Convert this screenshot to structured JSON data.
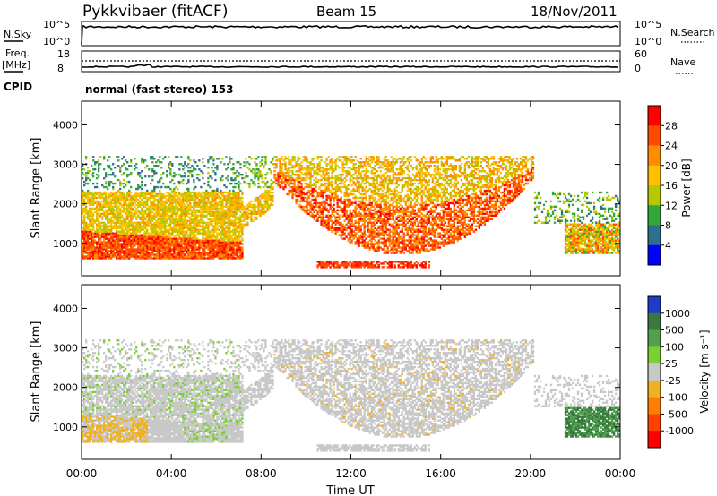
{
  "header": {
    "station": "Pykkvibaer (fitACF)",
    "beam": "Beam 15",
    "date": "18/Nov/2011"
  },
  "params": {
    "nsky_label": "N.Sky",
    "nsky_ticks": [
      "10^5",
      "10^0"
    ],
    "nsearch_label": "N.Search",
    "nsearch_ticks": [
      "10^5",
      "10^0"
    ],
    "freq_label": "Freq.",
    "freq_unit": "[MHz]",
    "freq_ticks": [
      "18",
      "8"
    ],
    "nave_label": "Nave",
    "nave_ticks": [
      "60",
      "0"
    ],
    "cpid_label": "CPID",
    "cpid_value": "normal (fast stereo) 153"
  },
  "axes": {
    "xlabel": "Time UT",
    "x_ticks": [
      "00:00",
      "04:00",
      "08:00",
      "12:00",
      "16:00",
      "20:00",
      "00:00"
    ],
    "ylabel": "Slant Range [km]",
    "y_ticks": [
      "4000",
      "3000",
      "2000",
      "1000"
    ],
    "yrange_km": [
      180,
      4600
    ]
  },
  "colorbars": {
    "power": {
      "title": "Power [dB]",
      "ticks": [
        "28",
        "24",
        "20",
        "16",
        "12",
        "8",
        "4"
      ],
      "colors": [
        "#ff0000",
        "#ff4a00",
        "#ff8c00",
        "#ffc000",
        "#b8c800",
        "#33a83a",
        "#2e6e8e",
        "#0000ff"
      ]
    },
    "velocity": {
      "title": "Velocity [m s⁻¹]",
      "ticks": [
        "1000",
        "500",
        "100",
        "25",
        "-25",
        "-100",
        "-500",
        "-1000"
      ],
      "colors": [
        "#1e3cc8",
        "#3a7840",
        "#50a050",
        "#7ad030",
        "#c8c8c8",
        "#f0b020",
        "#ff8000",
        "#ff4000",
        "#ff0000"
      ]
    }
  },
  "chart_data": [
    {
      "type": "heatmap",
      "title": "Power",
      "xlabel": "Time UT",
      "ylabel": "Slant Range [km]",
      "x_range_hours": [
        0,
        24
      ],
      "y_range_km": [
        180,
        4600
      ],
      "color_label": "Power [dB]",
      "color_ticks": [
        4,
        8,
        12,
        16,
        20,
        24,
        28
      ],
      "features": [
        {
          "time_start_h": 0,
          "time_end_h": 6,
          "range_start_km": 600,
          "range_end_km": 1300,
          "power_db": 26
        },
        {
          "time_start_h": 0,
          "time_end_h": 7,
          "range_start_km": 1300,
          "range_end_km": 2300,
          "power_db": 16
        },
        {
          "time_start_h": 0,
          "time_end_h": 7,
          "range_start_km": 2300,
          "range_end_km": 3200,
          "power_db": 8
        },
        {
          "time_start_h": 8,
          "time_end_h": 20,
          "range_start_km": 700,
          "range_end_km": 3200,
          "power_db": 24
        },
        {
          "time_start_h": 10.5,
          "time_end_h": 15.5,
          "range_start_km": 350,
          "range_end_km": 550,
          "power_db": 26
        },
        {
          "time_start_h": 20,
          "time_end_h": 24,
          "range_start_km": 900,
          "range_end_km": 2200,
          "power_db": 12
        }
      ]
    },
    {
      "type": "heatmap",
      "title": "Velocity",
      "xlabel": "Time UT",
      "ylabel": "Slant Range [km]",
      "x_range_hours": [
        0,
        24
      ],
      "y_range_km": [
        180,
        4600
      ],
      "color_label": "Velocity [m s⁻¹]",
      "color_ticks": [
        -1000,
        -500,
        -100,
        -25,
        25,
        100,
        500,
        1000
      ],
      "features": [
        {
          "time_start_h": 0,
          "time_end_h": 7,
          "range_start_km": 600,
          "range_end_km": 2300,
          "velocity_ms": 0
        },
        {
          "time_start_h": 0.2,
          "time_end_h": 3,
          "range_start_km": 600,
          "range_end_km": 1200,
          "velocity_ms": -120
        },
        {
          "time_start_h": 4.5,
          "time_end_h": 6.5,
          "range_start_km": 600,
          "range_end_km": 1500,
          "velocity_ms": 150
        },
        {
          "time_start_h": 8,
          "time_end_h": 20,
          "range_start_km": 700,
          "range_end_km": 3200,
          "velocity_ms": 0
        },
        {
          "time_start_h": 21.5,
          "time_end_h": 24,
          "range_start_km": 700,
          "range_end_km": 1500,
          "velocity_ms": 800
        }
      ]
    }
  ]
}
